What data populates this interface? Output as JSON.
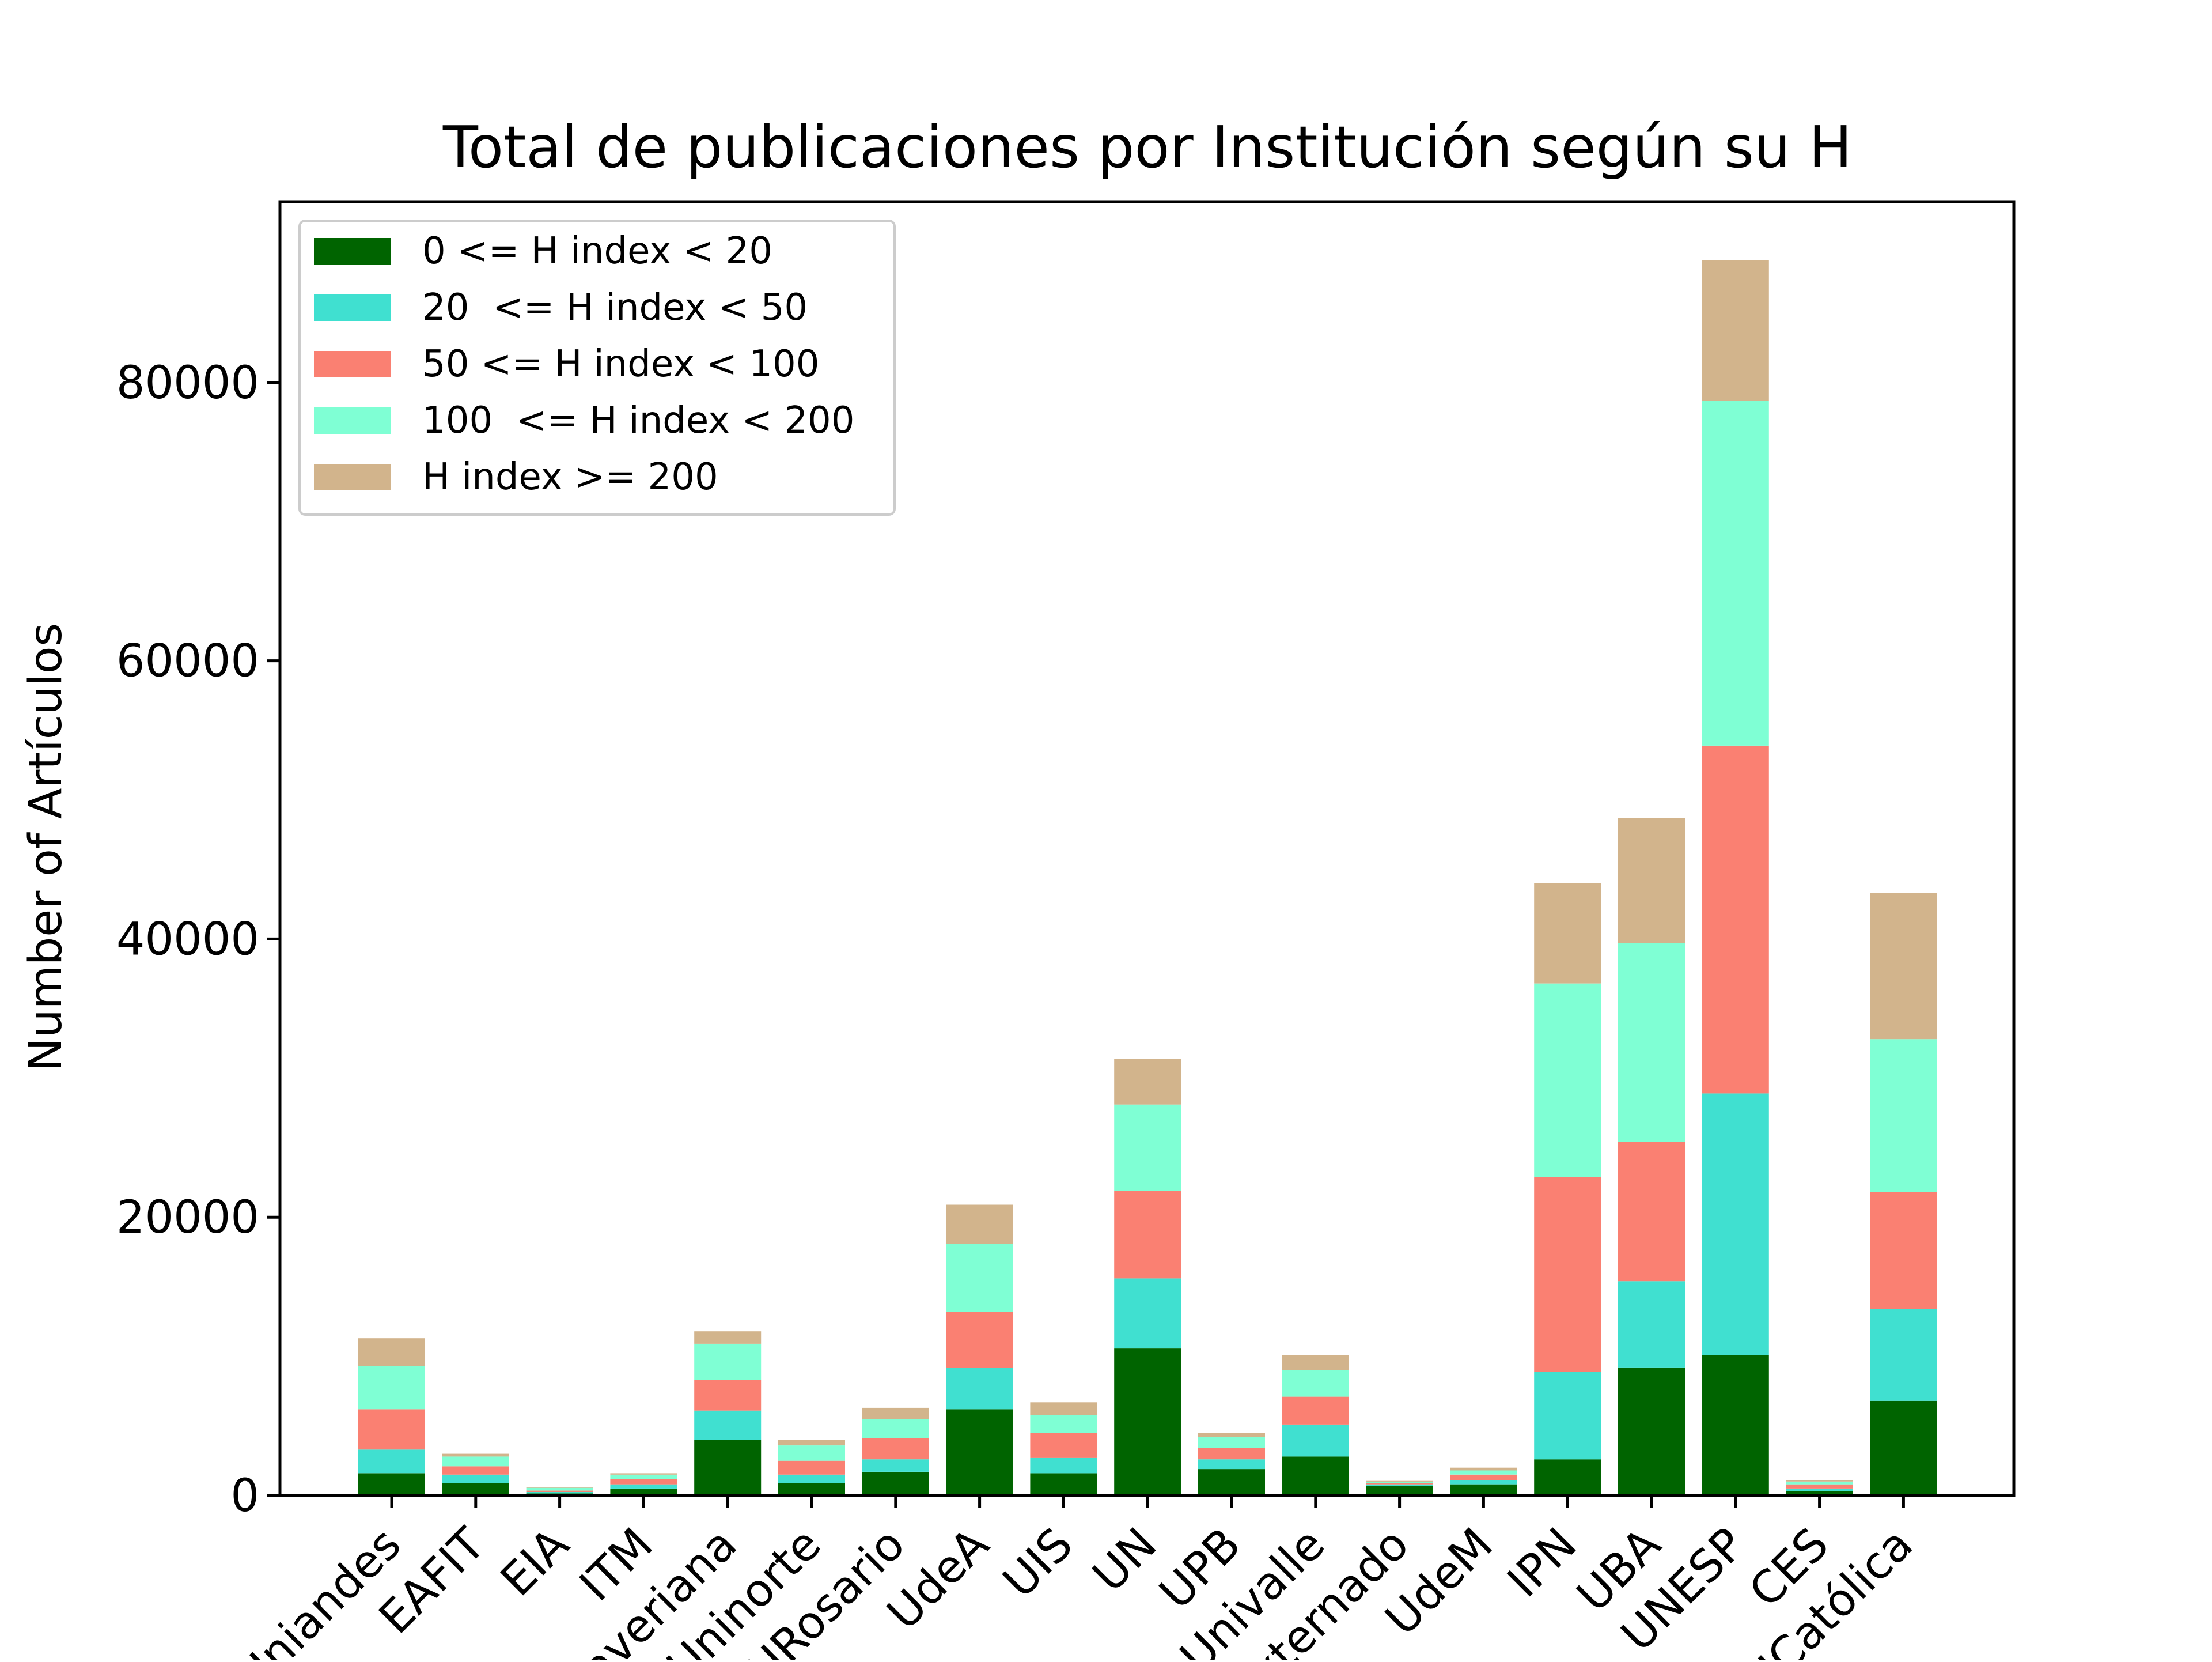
{
  "chart_data": {
    "type": "bar",
    "stacked": true,
    "title": "Total de publicaciones por Institución según su H",
    "xlabel": "",
    "ylabel": "Number of Artículos",
    "ylim": [
      0,
      93000
    ],
    "y_ticks": [
      "0",
      "20000",
      "40000",
      "60000",
      "80000"
    ],
    "grid": false,
    "legend_position": "top-left",
    "categories": [
      "Uniandes",
      "EAFIT",
      "EIA",
      "ITM",
      "Javeriana",
      "Uninorte",
      "URosario",
      "UdeA",
      "UIS",
      "UN",
      "UPB",
      "Univalle",
      "Externado",
      "UdeM",
      "IPN",
      "UBA",
      "UNESP",
      "CES",
      "UCatólica"
    ],
    "series": [
      {
        "name": "0 <= H index < 20",
        "color": "#006400",
        "values": [
          1600,
          900,
          150,
          500,
          4000,
          900,
          1700,
          6200,
          1600,
          10600,
          1900,
          2800,
          700,
          800,
          2600,
          9200,
          10100,
          300,
          6800
        ]
      },
      {
        "name": "20  <= H index < 50",
        "color": "#40E0D0",
        "values": [
          1700,
          600,
          100,
          300,
          2100,
          600,
          900,
          3000,
          1100,
          5000,
          700,
          2300,
          100,
          300,
          6300,
          6200,
          18800,
          200,
          6600
        ]
      },
      {
        "name": "50 <= H index < 100",
        "color": "#FA8072",
        "values": [
          2900,
          600,
          100,
          400,
          2200,
          1000,
          1500,
          4000,
          1800,
          6300,
          800,
          2000,
          100,
          400,
          14000,
          10000,
          25000,
          300,
          8400
        ]
      },
      {
        "name": "100  <= H index < 200",
        "color": "#7FFFD4",
        "values": [
          3100,
          700,
          200,
          300,
          2600,
          1100,
          1400,
          4900,
          1300,
          6200,
          800,
          1900,
          100,
          300,
          13900,
          14300,
          24800,
          200,
          11000
        ]
      },
      {
        "name": "H index >= 200",
        "color": "#D2B48C",
        "values": [
          2000,
          200,
          50,
          100,
          900,
          400,
          800,
          2800,
          900,
          3300,
          300,
          1100,
          50,
          200,
          7200,
          9000,
          10100,
          100,
          10500
        ]
      }
    ]
  }
}
